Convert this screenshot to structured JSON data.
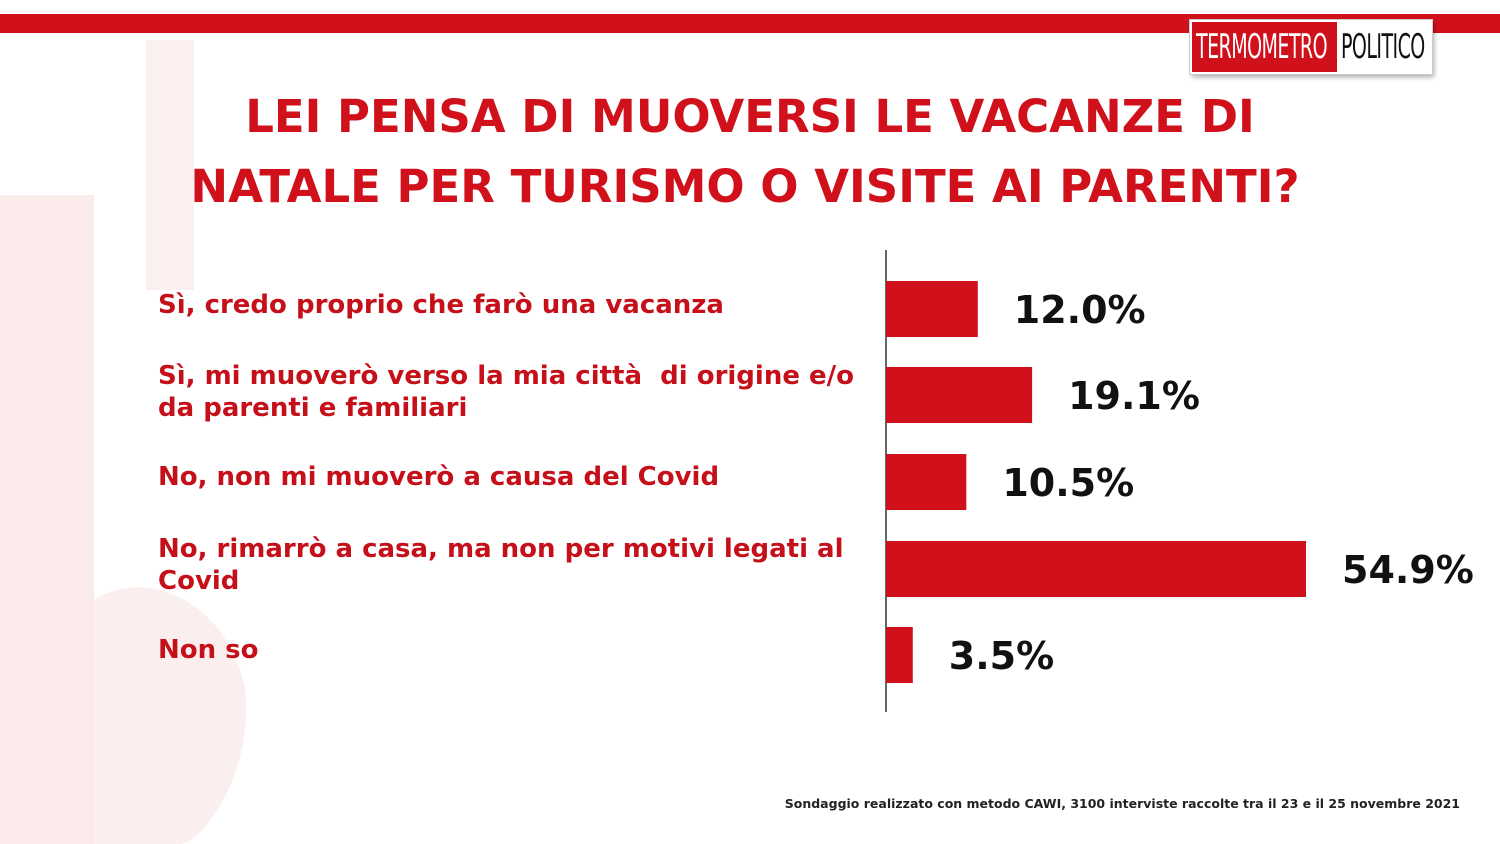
{
  "brand": {
    "logo_part1": "TERMOMETRO",
    "logo_part2": "POLITICO",
    "accent_color": "#d0101a"
  },
  "chart_data": {
    "type": "bar",
    "orientation": "horizontal",
    "title": "LEI PENSA DI MUOVERSI LE VACANZE DI NATALE PER TURISMO O VISITE AI PARENTI?",
    "title_line1": "LEI PENSA DI MUOVERSI LE VACANZE DI",
    "title_line2": "NATALE PER TURISMO O VISITE AI PARENTI?",
    "categories": [
      "Sì, credo proprio che farò una vacanza",
      "Sì, mi muoverò verso la mia città  di origine e/o da parenti e familiari",
      "No, non mi muoverò a causa del Covid",
      "No, rimarrò a casa, ma non per motivi legati al Covid",
      "Non so"
    ],
    "values": [
      12.0,
      19.1,
      10.5,
      54.9,
      3.5
    ],
    "value_labels": [
      "12.0%",
      "19.1%",
      "10.5%",
      "54.9%",
      "3.5%"
    ],
    "unit": "%",
    "bar_color": "#d0101a",
    "xlim": [
      0,
      60
    ],
    "grid": false,
    "legend": "none"
  },
  "footnote": "Sondaggio realizzato con metodo CAWI, 3100 interviste raccolte tra il 23 e il 25 novembre 2021"
}
